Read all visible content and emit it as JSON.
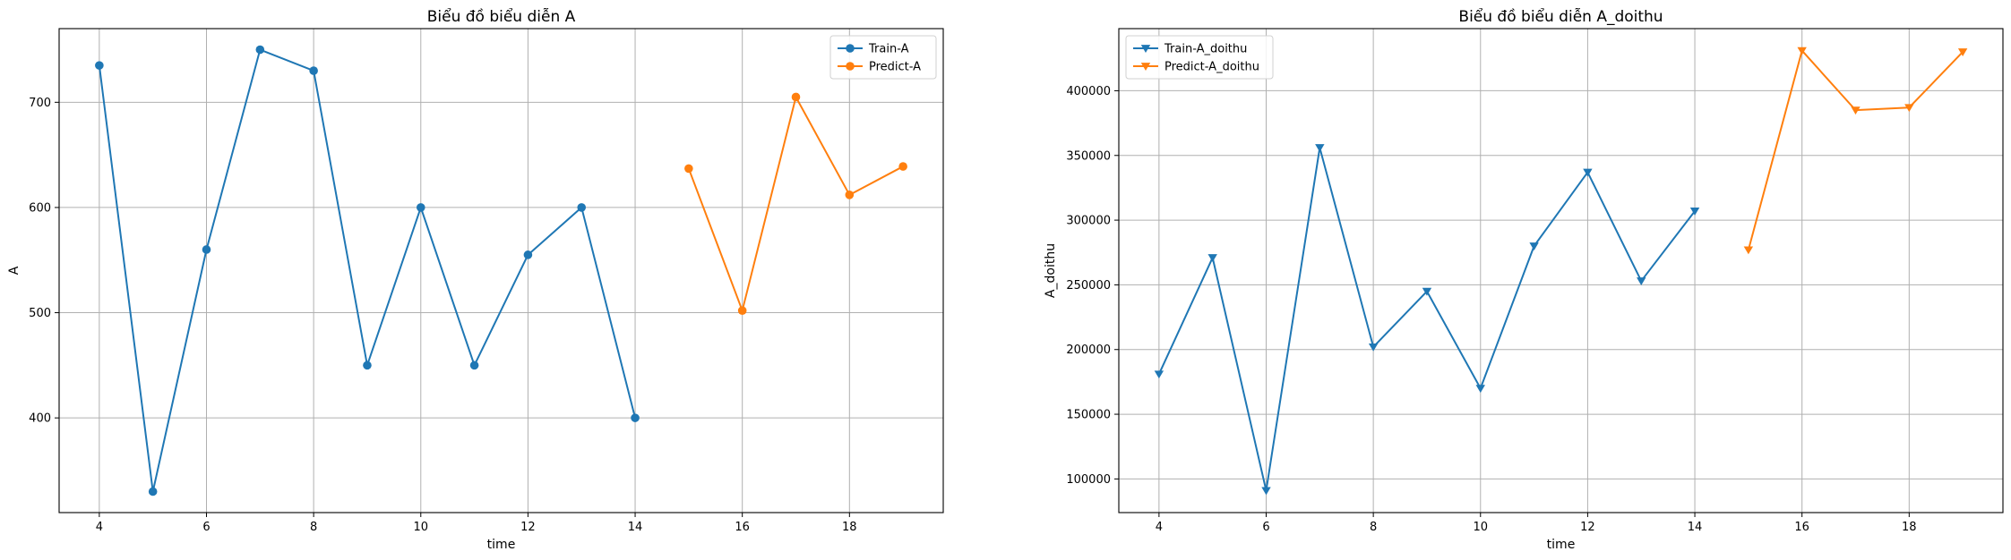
{
  "chart_data": [
    {
      "type": "line",
      "title": "Biểu đồ biểu diễn A",
      "xlabel": "time",
      "ylabel": "A",
      "xlim": [
        3.25,
        19.75
      ],
      "ylim": [
        310,
        770
      ],
      "xticks": [
        4,
        6,
        8,
        10,
        12,
        14,
        16,
        18
      ],
      "yticks": [
        400,
        500,
        600,
        700
      ],
      "grid": true,
      "legend_position": "upper right",
      "series": [
        {
          "name": "Train-A",
          "color": "#1f77b4",
          "marker": "circle",
          "x": [
            4,
            5,
            6,
            7,
            8,
            9,
            10,
            11,
            12,
            13,
            14
          ],
          "y": [
            735,
            330,
            560,
            750,
            730,
            450,
            600,
            450,
            555,
            600,
            400
          ]
        },
        {
          "name": "Predict-A",
          "color": "#ff7f0e",
          "marker": "circle",
          "x": [
            15,
            16,
            17,
            18,
            19
          ],
          "y": [
            637,
            502,
            705,
            612,
            639
          ]
        }
      ]
    },
    {
      "type": "line",
      "title": "Biểu đồ biểu diễn A_doithu",
      "xlabel": "time",
      "ylabel": "A_doithu",
      "xlim": [
        3.25,
        19.75
      ],
      "ylim": [
        74000,
        448000
      ],
      "xticks": [
        4,
        6,
        8,
        10,
        12,
        14,
        16,
        18
      ],
      "yticks": [
        100000,
        150000,
        200000,
        250000,
        300000,
        350000,
        400000
      ],
      "grid": true,
      "legend_position": "upper left",
      "series": [
        {
          "name": "Train-A_doithu",
          "color": "#1f77b4",
          "marker": "triangle-down",
          "x": [
            4,
            5,
            6,
            7,
            8,
            9,
            10,
            11,
            12,
            13,
            14
          ],
          "y": [
            181000,
            271000,
            91000,
            356000,
            202000,
            245000,
            170000,
            280000,
            337000,
            253000,
            307000
          ]
        },
        {
          "name": "Predict-A_doithu",
          "color": "#ff7f0e",
          "marker": "triangle-down",
          "x": [
            15,
            16,
            17,
            18,
            19
          ],
          "y": [
            277000,
            431000,
            385000,
            387000,
            430000
          ]
        }
      ]
    }
  ]
}
